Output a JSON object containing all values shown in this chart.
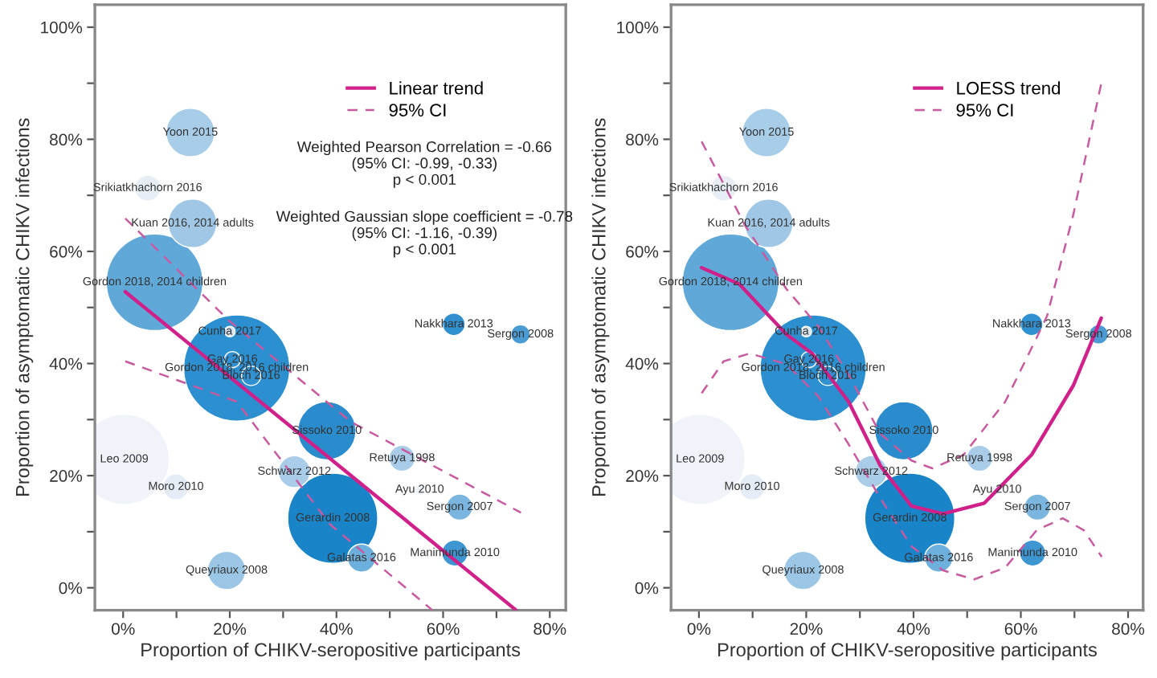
{
  "chart_data": [
    {
      "type": "bubble",
      "xlabel": "Proportion of CHIKV-seropositive participants",
      "ylabel": "Proportion of asymptomatic CHIKV infections",
      "xlim": [
        -5.3,
        83
      ],
      "ylim": [
        -4,
        104
      ],
      "xticks": [
        {
          "value": 0,
          "label": "0%"
        },
        {
          "value": 10,
          "label": null
        },
        {
          "value": 20,
          "label": "20%"
        },
        {
          "value": 30,
          "label": null
        },
        {
          "value": 40,
          "label": "40%"
        },
        {
          "value": 50,
          "label": null
        },
        {
          "value": 60,
          "label": "60%"
        },
        {
          "value": 70,
          "label": null
        },
        {
          "value": 80,
          "label": "80%"
        }
      ],
      "yticks": [
        {
          "value": 0,
          "label": "0%"
        },
        {
          "value": 10,
          "label": null
        },
        {
          "value": 20,
          "label": "20%"
        },
        {
          "value": 30,
          "label": null
        },
        {
          "value": 40,
          "label": "40%"
        },
        {
          "value": 50,
          "label": null
        },
        {
          "value": 60,
          "label": "60%"
        },
        {
          "value": 70,
          "label": null
        },
        {
          "value": 80,
          "label": "80%"
        },
        {
          "value": 90,
          "label": null
        },
        {
          "value": 100,
          "label": "100%"
        }
      ],
      "grid": false,
      "legend": "top right",
      "series": [
        {
          "type": "bubble",
          "x": [
            12.6,
            4.6,
            13,
            5.9,
            62,
            74.5,
            20,
            21.3,
            20.5,
            24,
            38.2,
            0.2,
            52.3,
            32.1,
            9.9,
            55.6,
            63.1,
            39.3,
            44.7,
            62.2,
            19.4
          ],
          "values": [
            81.2,
            71.3,
            65,
            54.5,
            47,
            45.2,
            45.7,
            39.2,
            40.7,
            37.8,
            28,
            22.9,
            23.1,
            20.7,
            18,
            17.5,
            14.4,
            12.4,
            5.3,
            6.2,
            3.1
          ],
          "sizes": [
            0.21,
            0.06,
            0.21,
            0.83,
            0.045,
            0.033,
            0.01,
            1,
            0.023,
            0.033,
            0.3,
            0.72,
            0.06,
            0.09,
            0.06,
            0.01,
            0.06,
            0.72,
            0.07,
            0.06,
            0.13
          ],
          "colors": [
            "#a8cde9",
            "#e8eef6",
            "#a0c8e6",
            "#5fa8d8",
            "#3190d0",
            "#4a9bd4",
            "#d8e6f3",
            "#2b8fd0",
            "#3190d0",
            "#3190d0",
            "#2a8ccc",
            "#f0f4fa",
            "#a9cde9",
            "#a9cde9",
            "#e4edf6",
            "#eef3f9",
            "#7ab6df",
            "#1a84c8",
            "#6eb0dd",
            "#3d95d2",
            "#9cc6e6"
          ]
        },
        {
          "type": "line",
          "name": "Linear trend",
          "color": "#d0208a",
          "line_style": "solid",
          "x": [
            0.4,
            73.7
          ],
          "values": [
            52.8,
            -4
          ]
        },
        {
          "type": "line",
          "name": "95% CI",
          "color": "#c85aa0",
          "line_style": "dashed",
          "x": [
            0.4,
            19.9,
            42.7,
            74.6
          ],
          "values": [
            65.9,
            47.6,
            29.6,
            13.4
          ]
        },
        {
          "type": "line",
          "color": "#c85aa0",
          "line_style": "dashed",
          "x": [
            0.4,
            21.3,
            38.8,
            58
          ],
          "values": [
            40.4,
            33.2,
            11.3,
            -4
          ]
        }
      ],
      "annotations": [
        "Weighted Pearson Correlation = -0.66\n(95% CI: -0.99, -0.33)\np < 0.001",
        "Weighted Gaussian slope coefficient = -0.78\n(95% CI: -1.16, -0.39)\np < 0.001",
        {
          "text": "Yoon 2015",
          "x": 12.6,
          "y": 81.2
        },
        {
          "text": "Srikiatkhachorn 2016",
          "x": 4.6,
          "y": 71.3
        },
        {
          "text": "Kuan 2016, 2014 adults",
          "x": 13,
          "y": 65
        },
        {
          "text": "Gordon 2018, 2014 children",
          "x": 5.9,
          "y": 54.5
        },
        {
          "text": "Nakkhara 2013",
          "x": 62,
          "y": 47
        },
        {
          "text": "Sergon 2008",
          "x": 74.5,
          "y": 45.2
        },
        {
          "text": "Cunha 2017",
          "x": 20,
          "y": 45.7
        },
        {
          "text": "Gordon 2018, 2016 children",
          "x": 21.3,
          "y": 39.2
        },
        {
          "text": "Gay 2016",
          "x": 20.5,
          "y": 40.7
        },
        {
          "text": "Bloch 2016",
          "x": 24,
          "y": 37.8
        },
        {
          "text": "Sissoko 2010",
          "x": 38.2,
          "y": 28
        },
        {
          "text": "Leo 2009",
          "x": 0.2,
          "y": 22.9
        },
        {
          "text": "Retuya 1998",
          "x": 52.3,
          "y": 23.1
        },
        {
          "text": "Schwarz 2012",
          "x": 32.1,
          "y": 20.7
        },
        {
          "text": "Moro 2010",
          "x": 9.9,
          "y": 18
        },
        {
          "text": "Ayu 2010",
          "x": 55.6,
          "y": 17.5
        },
        {
          "text": "Sergon 2007",
          "x": 63.1,
          "y": 14.4
        },
        {
          "text": "Gerardin 2008",
          "x": 39.3,
          "y": 12.4
        },
        {
          "text": "Galatas 2016",
          "x": 44.7,
          "y": 5.3
        },
        {
          "text": "Manimunda 2010",
          "x": 62.2,
          "y": 6.2
        },
        {
          "text": "Queyriaux 2008",
          "x": 19.4,
          "y": 3.1
        }
      ]
    },
    {
      "type": "bubble",
      "xlabel": "Proportion of CHIKV-seropositive participants",
      "ylabel": "Proportion of asymptomatic CHIKV infections",
      "xlim": [
        -5.2,
        82.8
      ],
      "ylim": [
        -4,
        104
      ],
      "xticks": [
        {
          "value": 0,
          "label": "0%"
        },
        {
          "value": 10,
          "label": null
        },
        {
          "value": 20,
          "label": "20%"
        },
        {
          "value": 30,
          "label": null
        },
        {
          "value": 40,
          "label": "40%"
        },
        {
          "value": 50,
          "label": null
        },
        {
          "value": 60,
          "label": "60%"
        },
        {
          "value": 70,
          "label": null
        },
        {
          "value": 80,
          "label": "80%"
        }
      ],
      "yticks": [
        {
          "value": 0,
          "label": "0%"
        },
        {
          "value": 10,
          "label": null
        },
        {
          "value": 20,
          "label": "20%"
        },
        {
          "value": 30,
          "label": null
        },
        {
          "value": 40,
          "label": "40%"
        },
        {
          "value": 50,
          "label": null
        },
        {
          "value": 60,
          "label": "60%"
        },
        {
          "value": 70,
          "label": null
        },
        {
          "value": 80,
          "label": "80%"
        },
        {
          "value": 90,
          "label": null
        },
        {
          "value": 100,
          "label": "100%"
        }
      ],
      "grid": false,
      "legend": "top right",
      "series": [
        {
          "type": "bubble",
          "x": [
            12.6,
            4.6,
            13,
            5.9,
            62,
            74.5,
            20,
            21.3,
            20.5,
            24,
            38.2,
            0.2,
            52.3,
            32.1,
            9.9,
            55.6,
            63.1,
            39.3,
            44.7,
            62.2,
            19.4
          ],
          "values": [
            81.2,
            71.3,
            65,
            54.5,
            47,
            45.2,
            45.7,
            39.2,
            40.7,
            37.8,
            28,
            22.9,
            23.1,
            20.7,
            18,
            17.5,
            14.4,
            12.4,
            5.3,
            6.2,
            3.1
          ],
          "sizes": [
            0.21,
            0.06,
            0.21,
            0.83,
            0.045,
            0.033,
            0.01,
            1,
            0.023,
            0.033,
            0.3,
            0.72,
            0.06,
            0.09,
            0.06,
            0.01,
            0.06,
            0.72,
            0.07,
            0.06,
            0.13
          ],
          "colors": [
            "#a8cde9",
            "#e8eef6",
            "#a0c8e6",
            "#5fa8d8",
            "#3190d0",
            "#4a9bd4",
            "#d8e6f3",
            "#2b8fd0",
            "#3190d0",
            "#3190d0",
            "#2a8ccc",
            "#f0f4fa",
            "#a9cde9",
            "#a9cde9",
            "#e4edf6",
            "#eef3f9",
            "#7ab6df",
            "#1a84c8",
            "#6eb0dd",
            "#3d95d2",
            "#9cc6e6"
          ]
        },
        {
          "type": "line",
          "name": "LOESS trend",
          "color": "#d0208a",
          "line_style": "solid",
          "x": [
            0.5,
            7.5,
            16.3,
            21.1,
            27.9,
            33.8,
            39.6,
            45.5,
            53.2,
            62,
            69.8,
            75
          ],
          "values": [
            57.1,
            54.2,
            45.2,
            41.8,
            33.2,
            21.8,
            14.6,
            13.2,
            15.1,
            23.7,
            36.1,
            48.1
          ]
        },
        {
          "type": "line",
          "name": "95% CI",
          "color": "#c85aa0",
          "line_style": "dashed",
          "x": [
            0.5,
            8.5,
            16.3,
            22.2,
            27.9,
            33.8,
            39.6,
            43.5,
            49.3,
            57.1,
            63,
            64.9,
            69.8,
            75
          ],
          "values": [
            79.6,
            64.8,
            53.3,
            46.7,
            38,
            27.5,
            22.7,
            21.3,
            23.7,
            33.2,
            44.7,
            48.5,
            66.6,
            90
          ]
        },
        {
          "type": "line",
          "color": "#c85aa0",
          "line_style": "dashed",
          "x": [
            0.5,
            4.6,
            9.5,
            16.3,
            22.2,
            27.9,
            33.8,
            39.6,
            45.5,
            51.3,
            57.1,
            63,
            67.8,
            71.7,
            75.1
          ],
          "values": [
            34.7,
            40.4,
            41.8,
            39.9,
            34.2,
            25.6,
            16,
            7.4,
            3.1,
            1.5,
            3.6,
            10.3,
            12.4,
            10.3,
            5.5
          ]
        }
      ],
      "annotations": [
        {
          "text": "Yoon 2015",
          "x": 12.6,
          "y": 81.2
        },
        {
          "text": "Srikiatkhachorn 2016",
          "x": 4.6,
          "y": 71.3
        },
        {
          "text": "Kuan 2016, 2014 adults",
          "x": 13,
          "y": 65
        },
        {
          "text": "Gordon 2018, 2014 children",
          "x": 5.9,
          "y": 54.5
        },
        {
          "text": "Nakkhara 2013",
          "x": 62,
          "y": 47
        },
        {
          "text": "Sergon 2008",
          "x": 74.5,
          "y": 45.2
        },
        {
          "text": "Cunha 2017",
          "x": 20,
          "y": 45.7
        },
        {
          "text": "Gordon 2018, 2016 children",
          "x": 21.3,
          "y": 39.2
        },
        {
          "text": "Gay 2016",
          "x": 20.5,
          "y": 40.7
        },
        {
          "text": "Bloch 2016",
          "x": 24,
          "y": 37.8
        },
        {
          "text": "Sissoko 2010",
          "x": 38.2,
          "y": 28
        },
        {
          "text": "Leo 2009",
          "x": 0.2,
          "y": 22.9
        },
        {
          "text": "Retuya 1998",
          "x": 52.3,
          "y": 23.1
        },
        {
          "text": "Schwarz 2012",
          "x": 32.1,
          "y": 20.7
        },
        {
          "text": "Moro 2010",
          "x": 9.9,
          "y": 18
        },
        {
          "text": "Ayu 2010",
          "x": 55.6,
          "y": 17.5
        },
        {
          "text": "Sergon 2007",
          "x": 63.1,
          "y": 14.4
        },
        {
          "text": "Gerardin 2008",
          "x": 39.3,
          "y": 12.4
        },
        {
          "text": "Galatas 2016",
          "x": 44.7,
          "y": 5.3
        },
        {
          "text": "Manimunda 2010",
          "x": 62.2,
          "y": 6.2
        },
        {
          "text": "Queyriaux 2008",
          "x": 19.4,
          "y": 3.1
        }
      ]
    }
  ]
}
